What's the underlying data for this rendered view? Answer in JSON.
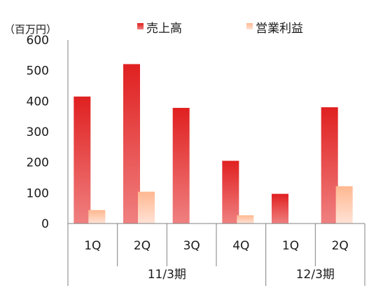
{
  "chart_data": {
    "type": "bar",
    "unit_label": "（百万円）",
    "categories": [
      "1Q",
      "2Q",
      "3Q",
      "4Q",
      "1Q",
      "2Q"
    ],
    "groups": [
      {
        "label": "11/3期",
        "count": 4
      },
      {
        "label": "12/3期",
        "count": 2
      }
    ],
    "series": [
      {
        "name": "売上高",
        "values": [
          415,
          521,
          378,
          205,
          97,
          380
        ],
        "color": "#e02020",
        "color_light": "#f08080"
      },
      {
        "name": "営業利益",
        "values": [
          44,
          104,
          0,
          27,
          0,
          122
        ],
        "color": "#ffb890",
        "color_light": "#ffe2d6"
      }
    ],
    "ylim": [
      0,
      600
    ],
    "yticks": [
      0,
      100,
      200,
      300,
      400,
      500,
      600
    ],
    "grid": false,
    "legend": "top"
  }
}
